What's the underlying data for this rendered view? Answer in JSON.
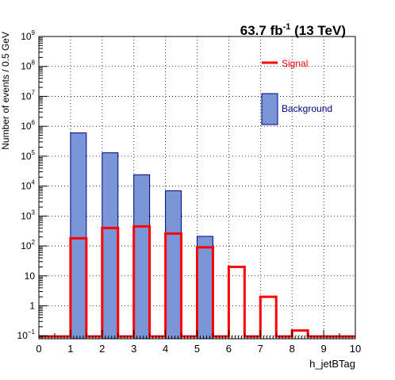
{
  "chart_data": {
    "type": "histogram",
    "title": "63.7 fb⁻¹ (13 TeV)",
    "title_parts": {
      "main": "63.7 fb",
      "sup": "-1",
      "rest": " (13 TeV)"
    },
    "xlabel": "h_jetBTag",
    "ylabel": "Number of events / 0.5 GeV",
    "xlim": [
      0,
      10
    ],
    "ylim": [
      0.08,
      1000000000
    ],
    "y_scale": "log",
    "grid": true,
    "bin_width": 0.5,
    "x_ticks": [
      "0",
      "1",
      "2",
      "3",
      "4",
      "5",
      "6",
      "7",
      "8",
      "9",
      "10"
    ],
    "y_ticks": [
      {
        "exp": -1,
        "base": "10",
        "sup": "−1"
      },
      {
        "exp": 0,
        "base": "1",
        "sup": ""
      },
      {
        "exp": 1,
        "base": "10",
        "sup": ""
      },
      {
        "exp": 2,
        "base": "10",
        "sup": "2"
      },
      {
        "exp": 3,
        "base": "10",
        "sup": "3"
      },
      {
        "exp": 4,
        "base": "10",
        "sup": "4"
      },
      {
        "exp": 5,
        "base": "10",
        "sup": "5"
      },
      {
        "exp": 6,
        "base": "10",
        "sup": "6"
      },
      {
        "exp": 7,
        "base": "10",
        "sup": "7"
      },
      {
        "exp": 8,
        "base": "10",
        "sup": "8"
      },
      {
        "exp": 9,
        "base": "10",
        "sup": "9"
      }
    ],
    "series": [
      {
        "name": "Background",
        "style": "filled",
        "color": "#7b96d6",
        "edge_color": "#00007f",
        "bins": [
          {
            "x_low": 1,
            "x_high": 1.5,
            "value": 600000
          },
          {
            "x_low": 2,
            "x_high": 2.5,
            "value": 130000
          },
          {
            "x_low": 3,
            "x_high": 3.5,
            "value": 24000
          },
          {
            "x_low": 4,
            "x_high": 4.5,
            "value": 7000
          },
          {
            "x_low": 5,
            "x_high": 5.5,
            "value": 210
          }
        ]
      },
      {
        "name": "Signal",
        "style": "line",
        "color": "#ff0000",
        "baseline": 0.095,
        "bins": [
          {
            "x_low": 1,
            "x_high": 1.5,
            "value": 180
          },
          {
            "x_low": 2,
            "x_high": 2.5,
            "value": 400
          },
          {
            "x_low": 3,
            "x_high": 3.5,
            "value": 450
          },
          {
            "x_low": 4,
            "x_high": 4.5,
            "value": 260
          },
          {
            "x_low": 5,
            "x_high": 5.5,
            "value": 90
          },
          {
            "x_low": 6,
            "x_high": 6.5,
            "value": 20
          },
          {
            "x_low": 7,
            "x_high": 7.5,
            "value": 2
          },
          {
            "x_low": 8,
            "x_high": 8.5,
            "value": 0.15
          }
        ]
      }
    ],
    "legend": {
      "placement": "top-right",
      "entries": [
        {
          "label": "Signal",
          "text_color": "#ff0000"
        },
        {
          "label": "Background",
          "text_color": "#00007f"
        }
      ]
    }
  }
}
